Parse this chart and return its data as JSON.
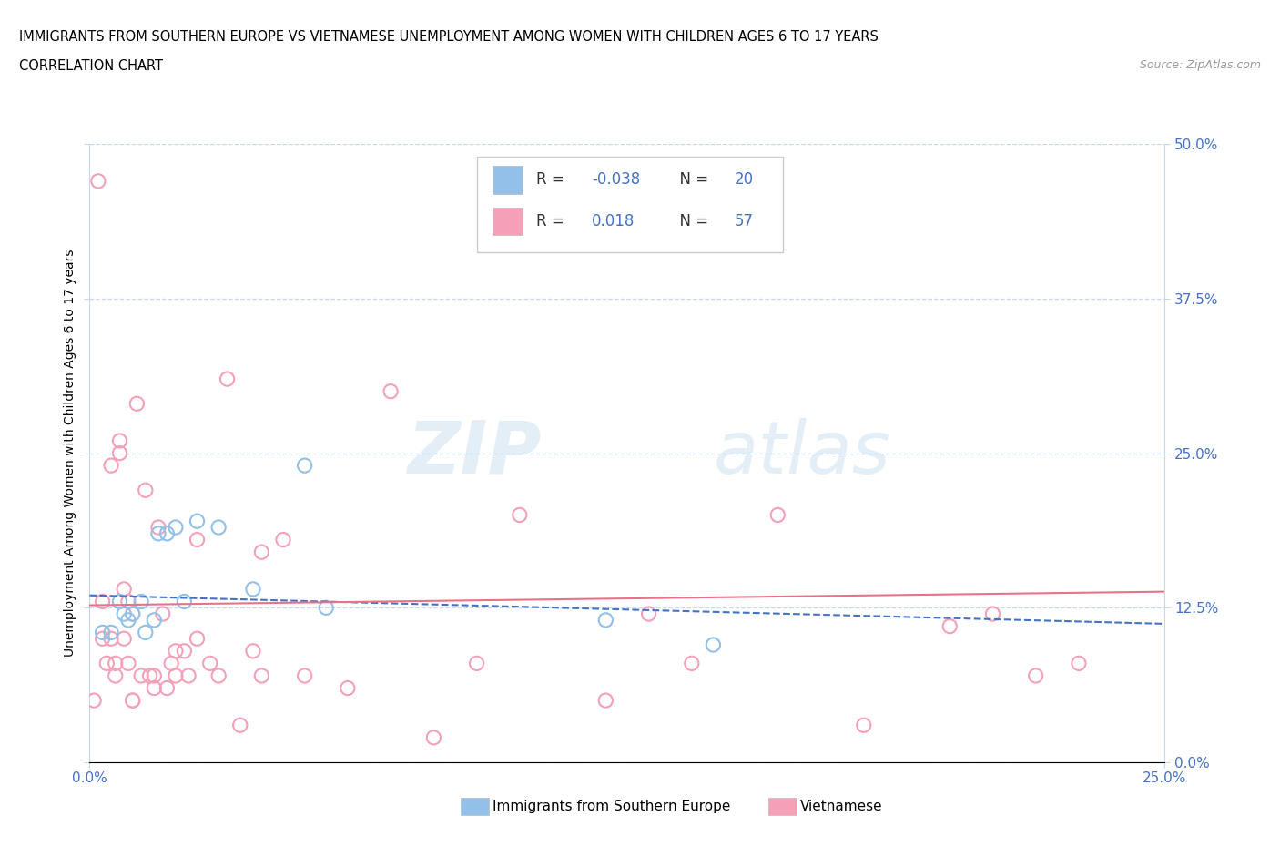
{
  "title": "IMMIGRANTS FROM SOUTHERN EUROPE VS VIETNAMESE UNEMPLOYMENT AMONG WOMEN WITH CHILDREN AGES 6 TO 17 YEARS",
  "subtitle": "CORRELATION CHART",
  "source": "Source: ZipAtlas.com",
  "ylabel": "Unemployment Among Women with Children Ages 6 to 17 years",
  "ytick_labels": [
    "0.0%",
    "12.5%",
    "25.0%",
    "37.5%",
    "50.0%"
  ],
  "ytick_values": [
    0.0,
    0.125,
    0.25,
    0.375,
    0.5
  ],
  "xtick_values": [
    0.0,
    0.25
  ],
  "xtick_labels": [
    "0.0%",
    "25.0%"
  ],
  "color_blue": "#92C0E8",
  "color_pink": "#F4A0B8",
  "color_blue_dark": "#4472C4",
  "color_pink_dark": "#E8728A",
  "watermark_zip": "ZIP",
  "watermark_atlas": "atlas",
  "blue_scatter_x": [
    0.003,
    0.005,
    0.007,
    0.008,
    0.009,
    0.01,
    0.012,
    0.013,
    0.015,
    0.016,
    0.018,
    0.02,
    0.022,
    0.025,
    0.03,
    0.038,
    0.05,
    0.055,
    0.12,
    0.145
  ],
  "blue_scatter_y": [
    0.105,
    0.105,
    0.13,
    0.12,
    0.115,
    0.12,
    0.13,
    0.105,
    0.115,
    0.185,
    0.185,
    0.19,
    0.13,
    0.195,
    0.19,
    0.14,
    0.24,
    0.125,
    0.115,
    0.095
  ],
  "pink_scatter_x": [
    0.001,
    0.002,
    0.003,
    0.003,
    0.004,
    0.005,
    0.005,
    0.006,
    0.006,
    0.007,
    0.007,
    0.008,
    0.008,
    0.009,
    0.009,
    0.01,
    0.01,
    0.01,
    0.011,
    0.012,
    0.013,
    0.014,
    0.015,
    0.015,
    0.016,
    0.017,
    0.018,
    0.019,
    0.02,
    0.02,
    0.022,
    0.023,
    0.025,
    0.025,
    0.028,
    0.03,
    0.032,
    0.035,
    0.038,
    0.04,
    0.04,
    0.045,
    0.05,
    0.06,
    0.07,
    0.08,
    0.09,
    0.1,
    0.12,
    0.13,
    0.14,
    0.16,
    0.18,
    0.2,
    0.21,
    0.22,
    0.23
  ],
  "pink_scatter_y": [
    0.05,
    0.47,
    0.1,
    0.13,
    0.08,
    0.1,
    0.24,
    0.07,
    0.08,
    0.26,
    0.25,
    0.14,
    0.1,
    0.13,
    0.08,
    0.12,
    0.05,
    0.05,
    0.29,
    0.07,
    0.22,
    0.07,
    0.07,
    0.06,
    0.19,
    0.12,
    0.06,
    0.08,
    0.07,
    0.09,
    0.09,
    0.07,
    0.1,
    0.18,
    0.08,
    0.07,
    0.31,
    0.03,
    0.09,
    0.07,
    0.17,
    0.18,
    0.07,
    0.06,
    0.3,
    0.02,
    0.08,
    0.2,
    0.05,
    0.12,
    0.08,
    0.2,
    0.03,
    0.11,
    0.12,
    0.07,
    0.08
  ],
  "blue_line_x": [
    0.0,
    0.25
  ],
  "blue_line_y": [
    0.135,
    0.112
  ],
  "pink_line_x": [
    0.0,
    0.25
  ],
  "pink_line_y": [
    0.127,
    0.138
  ],
  "xmin": 0.0,
  "xmax": 0.25,
  "ymin": 0.0,
  "ymax": 0.5
}
